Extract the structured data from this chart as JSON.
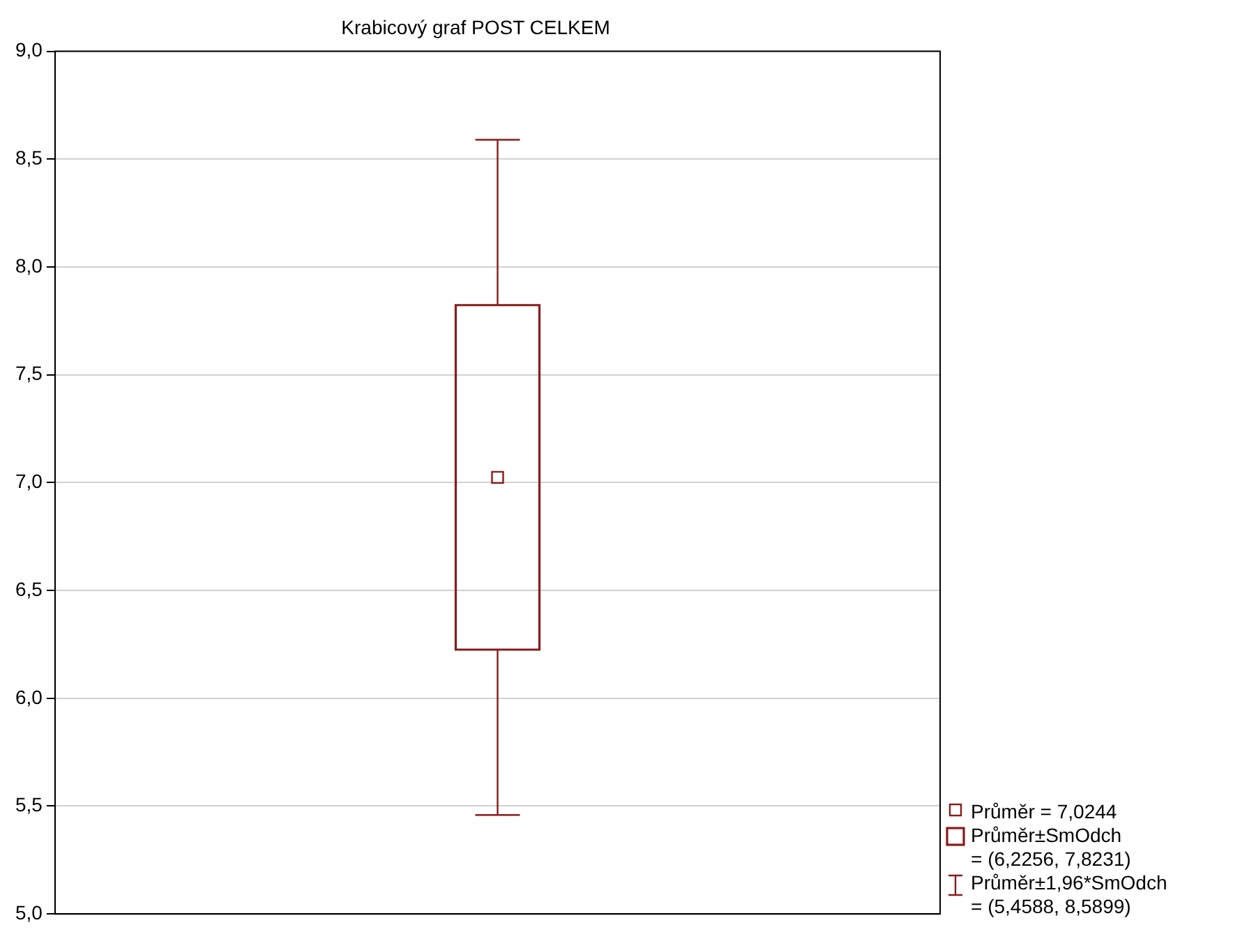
{
  "chart_data": {
    "type": "box",
    "title": "Krabicový graf POST CELKEM",
    "categories": [
      null
    ],
    "color": "#8b1a1a",
    "boxes": [
      {
        "low": 5.4588,
        "q1": 6.2256,
        "median": 7.0244,
        "q3": 7.8231,
        "high": 8.5899
      }
    ],
    "ylim": [
      5,
      9
    ],
    "yticks": [
      {
        "value": 5,
        "label": "5,0"
      },
      {
        "value": 5.5,
        "label": "5,5"
      },
      {
        "value": 6,
        "label": "6,0"
      },
      {
        "value": 6.5,
        "label": "6,5"
      },
      {
        "value": 7,
        "label": "7,0"
      },
      {
        "value": 7.5,
        "label": "7,5"
      },
      {
        "value": 8,
        "label": "8,0"
      },
      {
        "value": 8.5,
        "label": "8,5"
      },
      {
        "value": 9,
        "label": "9,0"
      }
    ],
    "grid": "y",
    "annotations": [
      "Průměr = 7,0244",
      "Průměr±SmOdch\n= (6,2256, 7,8231)",
      "Průměr±1,96*SmOdch\n= (5,4588, 8,5899)"
    ]
  }
}
